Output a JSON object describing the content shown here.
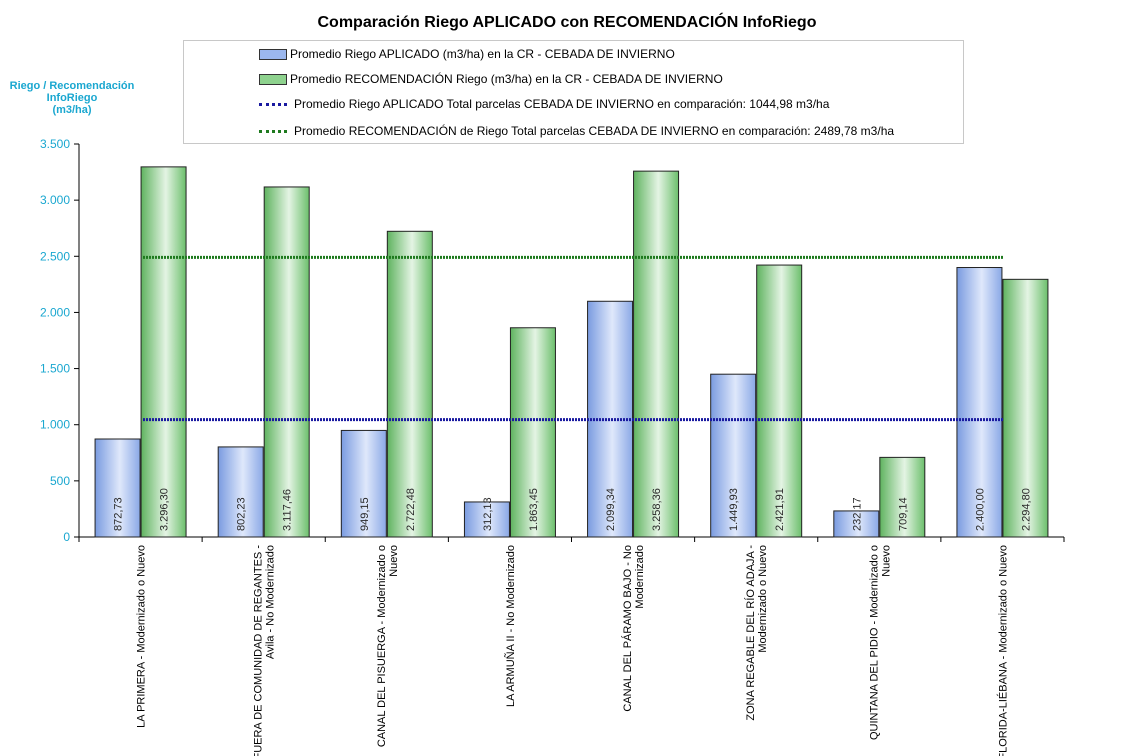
{
  "chart_data": {
    "type": "bar",
    "title": "Comparación Riego APLICADO con RECOMENDACIÓN InfoRiego",
    "ylabel_lines": [
      "Riego / Recomendación",
      "InfoRiego",
      "(m3/ha)"
    ],
    "xlabel": "",
    "ylim": [
      0,
      3500
    ],
    "yticks": [
      0,
      500,
      1000,
      1500,
      2000,
      2500,
      3000,
      3500
    ],
    "ytick_labels": [
      "0",
      "500",
      "1.000",
      "1.500",
      "2.000",
      "2.500",
      "3.000",
      "3.500"
    ],
    "categories": [
      [
        "LA PRIMERA - Modernizado o Nuevo"
      ],
      [
        "FUERA DE COMUNIDAD DE REGANTES -",
        "Avila - No Modernizado"
      ],
      [
        "CANAL DEL PISUERGA - Modernizado o",
        "Nuevo"
      ],
      [
        "LA ARMUÑA II - No Modernizado"
      ],
      [
        "CANAL DEL PÁRAMO BAJO - No",
        "Modernizado"
      ],
      [
        "ZONA REGABLE DEL RÍO ADAJA -",
        "Modernizado o Nuevo"
      ],
      [
        "QUINTANA DEL PIDIO - Modernizado o",
        "Nuevo"
      ],
      [
        "FLORIDA-LIÉBANA - Modernizado o Nuevo"
      ]
    ],
    "series": [
      {
        "name": "Promedio Riego APLICADO (m3/ha) en la CR - CEBADA DE INVIERNO",
        "values": [
          872.73,
          802.23,
          949.15,
          312.13,
          2099.34,
          1449.93,
          232.17,
          2400.0
        ],
        "labels": [
          "872,73",
          "802,23",
          "949,15",
          "312,13",
          "2.099,34",
          "1.449,93",
          "232,17",
          "2.400,00"
        ],
        "color": "#9bb7ee"
      },
      {
        "name": "Promedio RECOMENDACIÓN Riego (m3/ha) en la CR - CEBADA DE INVIERNO",
        "values": [
          3296.3,
          3117.46,
          2722.48,
          1863.45,
          3258.36,
          2421.91,
          709.14,
          2294.8
        ],
        "labels": [
          "3.296,30",
          "3.117,46",
          "2.722,48",
          "1.863,45",
          "3.258,36",
          "2.421,91",
          "709,14",
          "2.294,80"
        ],
        "color": "#8ed28e"
      }
    ],
    "reference_lines": [
      {
        "name": "Promedio Riego APLICADO Total parcelas CEBADA DE INVIERNO en comparación:  1044,98 m3/ha",
        "value": 1044.98,
        "color": "#1a1aa0"
      },
      {
        "name": "Promedio RECOMENDACIÓN de Riego Total parcelas CEBADA DE INVIERNO en comparación: 2489,78 m3/ha",
        "value": 2489.78,
        "color": "#1e7a1e"
      }
    ],
    "legend_position": "top-center"
  }
}
